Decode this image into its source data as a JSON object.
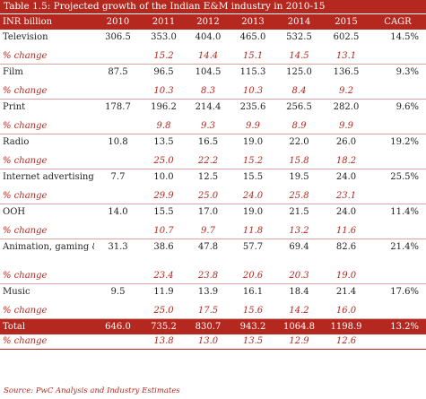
{
  "title": "Table 1.5: Projected growth of the Indian E&M industry in 2010-15",
  "columns": [
    "INR billion",
    "2010",
    "2011",
    "2012",
    "2013",
    "2014",
    "2015",
    "CAGR"
  ],
  "change_label": "% change",
  "rows": [
    {
      "name": "Television",
      "values": [
        "306.5",
        "353.0",
        "404.0",
        "465.0",
        "532.5",
        "602.5"
      ],
      "cagr": "14.5%",
      "changes": [
        "15.2",
        "14.4",
        "15.1",
        "14.5",
        "13.1"
      ]
    },
    {
      "name": "Film",
      "values": [
        "87.5",
        "96.5",
        "104.5",
        "115.3",
        "125.0",
        "136.5"
      ],
      "cagr": "9.3%",
      "changes": [
        "10.3",
        "8.3",
        "10.3",
        "8.4",
        "9.2"
      ]
    },
    {
      "name": "Print",
      "values": [
        "178.7",
        "196.2",
        "214.4",
        "235.6",
        "256.5",
        "282.0"
      ],
      "cagr": "9.6%",
      "changes": [
        "9.8",
        "9.3",
        "9.9",
        "8.9",
        "9.9"
      ]
    },
    {
      "name": "Radio",
      "values": [
        "10.8",
        "13.5",
        "16.5",
        "19.0",
        "22.0",
        "26.0"
      ],
      "cagr": "19.2%",
      "changes": [
        "25.0",
        "22.2",
        "15.2",
        "15.8",
        "18.2"
      ]
    },
    {
      "name": "Internet advertising",
      "values": [
        "7.7",
        "10.0",
        "12.5",
        "15.5",
        "19.5",
        "24.0"
      ],
      "cagr": "25.5%",
      "changes": [
        "29.9",
        "25.0",
        "24.0",
        "25.8",
        "23.1"
      ]
    },
    {
      "name": "OOH",
      "values": [
        "14.0",
        "15.5",
        "17.0",
        "19.0",
        "21.5",
        "24.0"
      ],
      "cagr": "11.4%",
      "changes": [
        "10.7",
        "9.7",
        "11.8",
        "13.2",
        "11.6"
      ]
    },
    {
      "name": "Animation, gaming & VFX",
      "values": [
        "31.3",
        "38.6",
        "47.8",
        "57.7",
        "69.4",
        "82.6"
      ],
      "cagr": "21.4%",
      "changes": [
        "23.4",
        "23.8",
        "20.6",
        "20.3",
        "19.0"
      ],
      "tall": true
    },
    {
      "name": "Music",
      "values": [
        "9.5",
        "11.9",
        "13.9",
        "16.1",
        "18.4",
        "21.4"
      ],
      "cagr": "17.6%",
      "changes": [
        "25.0",
        "17.5",
        "15.6",
        "14.2",
        "16.0"
      ]
    }
  ],
  "total": {
    "name": "Total",
    "values": [
      "646.0",
      "735.2",
      "830.7",
      "943.2",
      "1064.8",
      "1198.9"
    ],
    "cagr": "13.2%",
    "changes": [
      "13.8",
      "13.0",
      "13.5",
      "12.9",
      "12.6"
    ]
  },
  "source": "Source: PwC Analysis and Industry Estimates"
}
